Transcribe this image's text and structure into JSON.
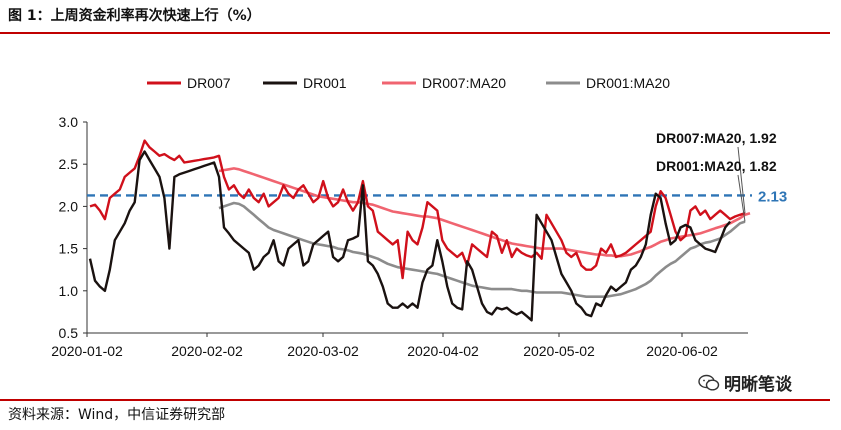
{
  "figure": {
    "title": "图 1：上周资金利率再次快速上行（%）",
    "source": "资料来源：Wind，中信证券研究部",
    "watermark": "明晰笔谈",
    "watermark_icon": "wechat-icon"
  },
  "chart_data": {
    "type": "line",
    "legend_position": "top",
    "ylim": [
      0.5,
      3.0
    ],
    "yticks": [
      "3.0",
      "2.5",
      "2.0",
      "1.5",
      "1.0",
      "0.5"
    ],
    "ytick_values": [
      3.0,
      2.5,
      2.0,
      1.5,
      1.0,
      0.5
    ],
    "xticks": [
      "2020-01-02",
      "2020-02-02",
      "2020-03-02",
      "2020-04-02",
      "2020-05-02",
      "2020-06-02"
    ],
    "grid": false,
    "reference_line": {
      "value": 2.13,
      "label": "2.13",
      "color": "#2e75b6"
    },
    "annotations": [
      {
        "text": "DR007:MA20, 1.92",
        "value": 1.92
      },
      {
        "text": "DR001:MA20, 1.82",
        "value": 1.82
      }
    ],
    "series": [
      {
        "name": "DR007",
        "color": "#d0101b",
        "width": 2.4,
        "values": [
          2.0,
          2.02,
          1.95,
          1.85,
          2.1,
          2.15,
          2.2,
          2.35,
          2.4,
          2.45,
          2.6,
          2.78,
          2.7,
          2.65,
          2.6,
          2.62,
          2.58,
          2.55,
          2.6,
          2.52,
          2.53,
          2.54,
          2.55,
          2.56,
          2.57,
          2.58,
          2.6,
          2.35,
          2.2,
          2.25,
          2.15,
          2.1,
          2.2,
          2.1,
          2.05,
          2.15,
          2.0,
          2.05,
          2.1,
          2.25,
          2.15,
          2.1,
          2.2,
          2.25,
          2.15,
          2.05,
          2.1,
          2.3,
          2.1,
          2.0,
          2.05,
          2.2,
          2.05,
          1.95,
          2.05,
          2.3,
          2.0,
          1.95,
          1.7,
          1.65,
          1.6,
          1.55,
          1.6,
          1.15,
          1.7,
          1.6,
          1.55,
          1.75,
          2.05,
          2.0,
          1.95,
          1.6,
          1.5,
          1.45,
          1.4,
          1.45,
          1.3,
          1.55,
          1.5,
          1.45,
          1.4,
          1.7,
          1.65,
          1.45,
          1.6,
          1.4,
          1.5,
          1.45,
          1.42,
          1.4,
          1.45,
          1.38,
          1.9,
          1.8,
          1.7,
          1.6,
          1.45,
          1.4,
          1.45,
          1.3,
          1.25,
          1.25,
          1.3,
          1.5,
          1.45,
          1.55,
          1.4,
          1.42,
          1.45,
          1.5,
          1.55,
          1.6,
          1.65,
          1.7,
          2.0,
          2.18,
          2.1,
          1.9,
          1.7,
          1.6,
          1.65,
          1.95,
          2.0,
          1.9,
          1.95,
          1.85,
          1.9,
          1.95,
          1.9,
          1.85,
          1.88,
          1.9,
          1.92
        ]
      },
      {
        "name": "DR001",
        "color": "#1a1210",
        "width": 2.4,
        "values": [
          1.38,
          1.12,
          1.05,
          1.0,
          1.25,
          1.6,
          1.7,
          1.8,
          1.95,
          2.05,
          2.55,
          2.65,
          2.55,
          2.45,
          2.35,
          2.1,
          1.5,
          2.35,
          2.38,
          2.4,
          2.42,
          2.44,
          2.46,
          2.48,
          2.5,
          2.52,
          2.35,
          1.75,
          1.68,
          1.6,
          1.55,
          1.5,
          1.45,
          1.25,
          1.3,
          1.4,
          1.45,
          1.6,
          1.35,
          1.3,
          1.5,
          1.55,
          1.6,
          1.3,
          1.35,
          1.55,
          1.6,
          1.65,
          1.7,
          1.4,
          1.35,
          1.4,
          1.6,
          1.62,
          1.65,
          2.25,
          1.35,
          1.3,
          1.2,
          1.05,
          0.85,
          0.8,
          0.8,
          0.85,
          0.8,
          0.85,
          0.8,
          1.1,
          1.25,
          1.3,
          1.6,
          1.35,
          1.05,
          0.85,
          0.8,
          0.78,
          1.35,
          1.25,
          1.05,
          0.85,
          0.75,
          0.72,
          0.8,
          0.78,
          0.8,
          0.75,
          0.72,
          0.75,
          0.7,
          0.65,
          1.9,
          1.8,
          1.7,
          1.6,
          1.4,
          1.2,
          1.1,
          1.0,
          0.85,
          0.8,
          0.72,
          0.7,
          0.85,
          0.82,
          0.95,
          1.05,
          1.0,
          1.05,
          1.1,
          1.25,
          1.3,
          1.4,
          1.55,
          1.9,
          2.15,
          2.1,
          1.8,
          1.55,
          1.6,
          1.75,
          1.78,
          1.75,
          1.6,
          1.55,
          1.5,
          1.48,
          1.46,
          1.6,
          1.75,
          1.82
        ]
      },
      {
        "name": "DR007:MA20",
        "color": "#f06470",
        "width": 2.6,
        "values": [
          null,
          null,
          null,
          null,
          null,
          null,
          null,
          null,
          null,
          null,
          null,
          null,
          null,
          null,
          null,
          null,
          null,
          null,
          null,
          null,
          null,
          null,
          null,
          null,
          null,
          null,
          2.42,
          2.43,
          2.44,
          2.45,
          2.44,
          2.42,
          2.4,
          2.38,
          2.36,
          2.34,
          2.32,
          2.3,
          2.28,
          2.26,
          2.24,
          2.22,
          2.2,
          2.18,
          2.16,
          2.14,
          2.12,
          2.11,
          2.1,
          2.09,
          2.08,
          2.07,
          2.06,
          2.05,
          2.05,
          2.04,
          2.03,
          2.02,
          2.0,
          1.98,
          1.96,
          1.94,
          1.93,
          1.92,
          1.91,
          1.9,
          1.89,
          1.88,
          1.88,
          1.87,
          1.86,
          1.84,
          1.82,
          1.8,
          1.78,
          1.76,
          1.74,
          1.72,
          1.7,
          1.68,
          1.66,
          1.64,
          1.62,
          1.6,
          1.58,
          1.56,
          1.55,
          1.54,
          1.53,
          1.52,
          1.51,
          1.5,
          1.5,
          1.5,
          1.5,
          1.5,
          1.49,
          1.48,
          1.47,
          1.46,
          1.45,
          1.44,
          1.43,
          1.43,
          1.42,
          1.42,
          1.41,
          1.41,
          1.42,
          1.43,
          1.45,
          1.47,
          1.5,
          1.52,
          1.55,
          1.58,
          1.6,
          1.62,
          1.63,
          1.64,
          1.65,
          1.66,
          1.67,
          1.68,
          1.7,
          1.72,
          1.74,
          1.76,
          1.78,
          1.8,
          1.83,
          1.86,
          1.9,
          1.92
        ]
      },
      {
        "name": "DR001:MA20",
        "color": "#8c8c8c",
        "width": 2.6,
        "values": [
          null,
          null,
          null,
          null,
          null,
          null,
          null,
          null,
          null,
          null,
          null,
          null,
          null,
          null,
          null,
          null,
          null,
          null,
          null,
          null,
          null,
          null,
          null,
          null,
          null,
          null,
          1.98,
          2.0,
          2.02,
          2.04,
          2.03,
          2.0,
          1.95,
          1.9,
          1.85,
          1.8,
          1.75,
          1.72,
          1.7,
          1.68,
          1.66,
          1.64,
          1.62,
          1.6,
          1.58,
          1.56,
          1.55,
          1.54,
          1.53,
          1.52,
          1.5,
          1.49,
          1.48,
          1.46,
          1.45,
          1.44,
          1.42,
          1.4,
          1.38,
          1.35,
          1.32,
          1.3,
          1.28,
          1.27,
          1.26,
          1.25,
          1.24,
          1.23,
          1.22,
          1.21,
          1.2,
          1.18,
          1.16,
          1.14,
          1.12,
          1.1,
          1.08,
          1.06,
          1.05,
          1.04,
          1.03,
          1.02,
          1.02,
          1.02,
          1.02,
          1.02,
          1.01,
          1.0,
          1.0,
          0.99,
          0.98,
          0.98,
          0.98,
          0.98,
          0.98,
          0.98,
          0.97,
          0.96,
          0.95,
          0.94,
          0.93,
          0.93,
          0.93,
          0.93,
          0.93,
          0.94,
          0.95,
          0.96,
          0.98,
          1.0,
          1.02,
          1.05,
          1.08,
          1.12,
          1.18,
          1.23,
          1.28,
          1.32,
          1.35,
          1.4,
          1.45,
          1.5,
          1.52,
          1.55,
          1.57,
          1.58,
          1.6,
          1.62,
          1.66,
          1.7,
          1.75,
          1.8,
          1.82
        ]
      }
    ]
  }
}
